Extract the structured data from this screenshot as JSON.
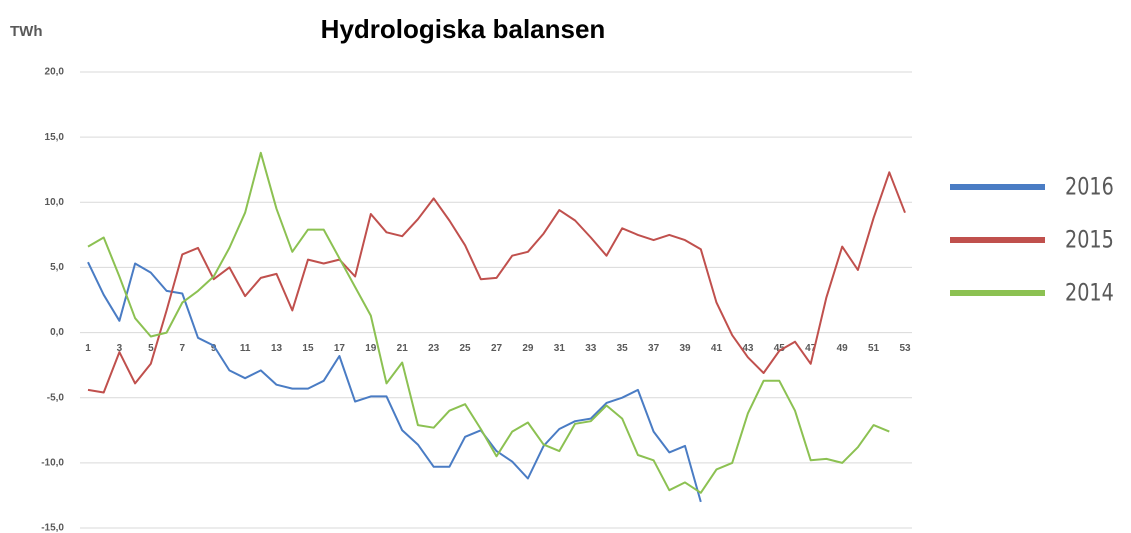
{
  "chart_data": {
    "type": "line",
    "title": "Hydrologiska balansen",
    "y_label": "TWh",
    "xlim": [
      1,
      53
    ],
    "xticks": [
      1,
      3,
      5,
      7,
      9,
      11,
      13,
      15,
      17,
      19,
      21,
      23,
      25,
      27,
      29,
      31,
      33,
      35,
      37,
      39,
      41,
      43,
      45,
      47,
      49,
      51,
      53
    ],
    "x": [
      1,
      2,
      3,
      4,
      5,
      6,
      7,
      8,
      9,
      10,
      11,
      12,
      13,
      14,
      15,
      16,
      17,
      18,
      19,
      20,
      21,
      22,
      23,
      24,
      25,
      26,
      27,
      28,
      29,
      30,
      31,
      32,
      33,
      34,
      35,
      36,
      37,
      38,
      39,
      40,
      41,
      42,
      43,
      44,
      45,
      46,
      47,
      48,
      49,
      50,
      51,
      52,
      53
    ],
    "ylim": [
      -15,
      20
    ],
    "yticks": [
      {
        "value": -15,
        "label": "-15,0"
      },
      {
        "value": -10,
        "label": "-10,0"
      },
      {
        "value": -5,
        "label": "-5,0"
      },
      {
        "value": 0,
        "label": "0,0"
      },
      {
        "value": 5,
        "label": "5,0"
      },
      {
        "value": 10,
        "label": "10,0"
      },
      {
        "value": 15,
        "label": "15,0"
      },
      {
        "value": 20,
        "label": "20,0"
      }
    ],
    "grid": true,
    "legend": "right",
    "series": [
      {
        "name": "2016",
        "color": "#4a7cc4",
        "values": [
          5.4,
          2.9,
          0.9,
          5.3,
          4.6,
          3.2,
          3.0,
          -0.4,
          -1.0,
          -2.9,
          -3.5,
          -2.9,
          -4.0,
          -4.3,
          -4.3,
          -3.7,
          -1.8,
          -5.3,
          -4.9,
          -4.9,
          -7.5,
          -8.6,
          -10.3,
          -10.3,
          -8.0,
          -7.5,
          -9.1,
          -9.9,
          -11.2,
          -8.7,
          -7.4,
          -6.8,
          -6.6,
          -5.4,
          -5.0,
          -4.4,
          -7.6,
          -9.2,
          -8.7,
          -13.0,
          null,
          null,
          null,
          null,
          null,
          null,
          null,
          null,
          null,
          null,
          null,
          null,
          null
        ]
      },
      {
        "name": "2015",
        "color": "#c0504d",
        "values": [
          -4.4,
          -4.6,
          -1.5,
          -3.9,
          -2.4,
          1.7,
          6.0,
          6.5,
          4.1,
          5.0,
          2.8,
          4.2,
          4.5,
          1.7,
          5.6,
          5.3,
          5.6,
          4.3,
          9.1,
          7.7,
          7.4,
          8.7,
          10.3,
          8.6,
          6.7,
          4.1,
          4.2,
          5.9,
          6.2,
          7.6,
          9.4,
          8.6,
          7.3,
          5.9,
          8.0,
          7.5,
          7.1,
          7.5,
          7.1,
          6.4,
          2.3,
          -0.2,
          -1.9,
          -3.1,
          -1.4,
          -0.7,
          -2.4,
          2.7,
          6.6,
          4.8,
          8.8,
          12.3,
          9.2
        ]
      },
      {
        "name": "2014",
        "color": "#8cc152",
        "values": [
          6.6,
          7.3,
          4.3,
          1.1,
          -0.3,
          0.0,
          2.3,
          3.2,
          4.3,
          6.5,
          9.2,
          13.8,
          9.5,
          6.2,
          7.9,
          7.9,
          5.7,
          3.5,
          1.3,
          -3.9,
          -2.3,
          -7.1,
          -7.3,
          -6.0,
          -5.5,
          -7.4,
          -9.5,
          -7.6,
          -6.9,
          -8.6,
          -9.1,
          -7.0,
          -6.8,
          -5.6,
          -6.6,
          -9.4,
          -9.8,
          -12.1,
          -11.5,
          -12.3,
          -10.5,
          -10.0,
          -6.2,
          -3.7,
          -3.7,
          -6.0,
          -9.8,
          -9.7,
          -10.0,
          -8.8,
          -7.1,
          -7.6,
          null
        ]
      }
    ]
  }
}
